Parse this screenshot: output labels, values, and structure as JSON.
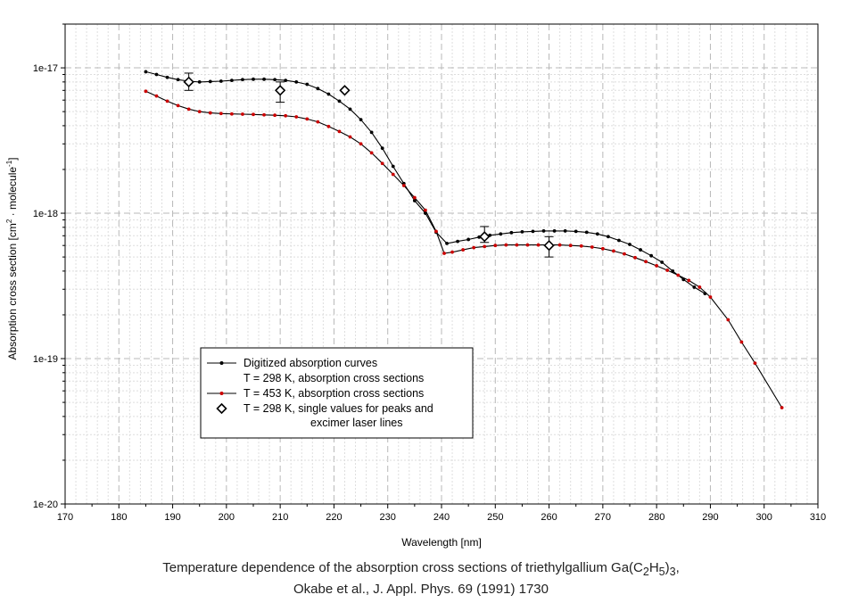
{
  "caption": {
    "line1_prefix": "Temperature dependence of the absorption cross sections of triethylgallium Ga(C",
    "sub1": "2",
    "mid1": "H",
    "sub2": "5",
    "mid2": ")",
    "sub3": "3",
    "line1_suffix": ",",
    "line2": "Okabe et al., J. Appl. Phys. 69 (1991) 1730"
  },
  "chart_data": {
    "type": "line",
    "xlabel": "Wavelength [nm]",
    "ylabel_parts": [
      "Absorption cross section [cm",
      "2",
      " · molecule",
      "-1",
      "]"
    ],
    "xlim": [
      170,
      310
    ],
    "ylim": [
      1e-20,
      2e-17
    ],
    "yscale": "log",
    "grid": true,
    "legend_placement": "lower-left",
    "x_ticks": [
      170,
      180,
      190,
      200,
      210,
      220,
      230,
      240,
      250,
      260,
      270,
      280,
      290,
      300,
      310
    ],
    "y_ticks": [
      {
        "value": 1e-20,
        "label": "1e-20"
      },
      {
        "value": 1e-19,
        "label": "1e-19"
      },
      {
        "value": 1e-18,
        "label": "1e-18"
      },
      {
        "value": 1e-17,
        "label": "1e-17"
      }
    ],
    "legend": {
      "header": "Digitized absorption curves",
      "entries": [
        {
          "label": "T = 298 K, absorption cross sections",
          "series": 0
        },
        {
          "label": "T = 453 K, absorption cross sections",
          "series": 1
        },
        {
          "label": "T = 298 K, single values for peaks and",
          "label2": "excimer laser lines",
          "series": 2
        }
      ]
    },
    "series": [
      {
        "name": "T = 298 K, absorption cross sections",
        "color": "#000000",
        "marker_color": "#000000",
        "x": [
          185,
          187,
          189,
          191,
          193,
          195,
          197,
          199,
          201,
          203,
          205,
          207,
          209,
          211,
          213,
          215,
          217,
          219,
          221,
          223,
          225,
          227,
          229,
          231,
          233,
          235,
          237,
          239,
          241,
          243,
          245,
          247,
          249,
          251,
          253,
          255,
          257,
          259,
          261,
          263,
          265,
          267,
          269,
          271,
          273,
          275,
          277,
          279,
          281,
          283,
          285,
          287,
          289
        ],
        "y": [
          9.4e-18,
          9e-18,
          8.6e-18,
          8.3e-18,
          8.1e-18,
          8e-18,
          8.05e-18,
          8.1e-18,
          8.2e-18,
          8.3e-18,
          8.35e-18,
          8.35e-18,
          8.3e-18,
          8.2e-18,
          8e-18,
          7.7e-18,
          7.2e-18,
          6.6e-18,
          5.9e-18,
          5.2e-18,
          4.4e-18,
          3.6e-18,
          2.8e-18,
          2.1e-18,
          1.6e-18,
          1.22e-18,
          1e-18,
          7.4e-19,
          6.2e-19,
          6.4e-19,
          6.6e-19,
          6.85e-19,
          7.05e-19,
          7.2e-19,
          7.35e-19,
          7.45e-19,
          7.5e-19,
          7.55e-19,
          7.55e-19,
          7.55e-19,
          7.5e-19,
          7.4e-19,
          7.2e-19,
          6.9e-19,
          6.5e-19,
          6.1e-19,
          5.6e-19,
          5.1e-19,
          4.6e-19,
          4e-19,
          3.5e-19,
          3.1e-19,
          2.8e-19
        ]
      },
      {
        "name": "T = 453 K, absorption cross sections",
        "color": "#000000",
        "marker_color": "#cc0000",
        "x": [
          185,
          187,
          189,
          191,
          193,
          195,
          197,
          199,
          201,
          203,
          205,
          207,
          209,
          211,
          213,
          215,
          217,
          219,
          221,
          223,
          225,
          227,
          229,
          231,
          233,
          235,
          237,
          239,
          240.5,
          242,
          244,
          246,
          248,
          250,
          252,
          254,
          256,
          258,
          260,
          262,
          264,
          266,
          268,
          270,
          272,
          274,
          276,
          278,
          280,
          282,
          284,
          286,
          288,
          290,
          293.3,
          295.8,
          298.3,
          303.3
        ],
        "y": [
          6.9e-18,
          6.4e-18,
          5.9e-18,
          5.5e-18,
          5.2e-18,
          5e-18,
          4.9e-18,
          4.85e-18,
          4.82e-18,
          4.8e-18,
          4.78e-18,
          4.75e-18,
          4.72e-18,
          4.68e-18,
          4.6e-18,
          4.45e-18,
          4.25e-18,
          3.95e-18,
          3.65e-18,
          3.35e-18,
          3e-18,
          2.6e-18,
          2.2e-18,
          1.85e-18,
          1.55e-18,
          1.28e-18,
          1.05e-18,
          7.5e-19,
          5.3e-19,
          5.4e-19,
          5.6e-19,
          5.8e-19,
          5.9e-19,
          6e-19,
          6.05e-19,
          6.05e-19,
          6.05e-19,
          6.05e-19,
          6.05e-19,
          6.05e-19,
          6e-19,
          5.95e-19,
          5.85e-19,
          5.7e-19,
          5.5e-19,
          5.25e-19,
          4.95e-19,
          4.65e-19,
          4.35e-19,
          4.05e-19,
          3.75e-19,
          3.45e-19,
          3.1e-19,
          2.65e-19,
          1.85e-19,
          1.3e-19,
          9.3e-20,
          4.6e-20
        ]
      },
      {
        "name": "T = 298 K, single values for peaks and excimer laser lines",
        "color": "#000000",
        "x": [
          193,
          210,
          222,
          248,
          260
        ],
        "y": [
          8e-18,
          7e-18,
          7e-18,
          6.9e-19,
          6e-19
        ],
        "err_low": [
          7e-18,
          5.8e-18,
          null,
          6.3e-19,
          5e-19
        ],
        "err_high": [
          9.2e-18,
          8e-18,
          null,
          8.1e-19,
          6.9e-19
        ]
      }
    ]
  }
}
